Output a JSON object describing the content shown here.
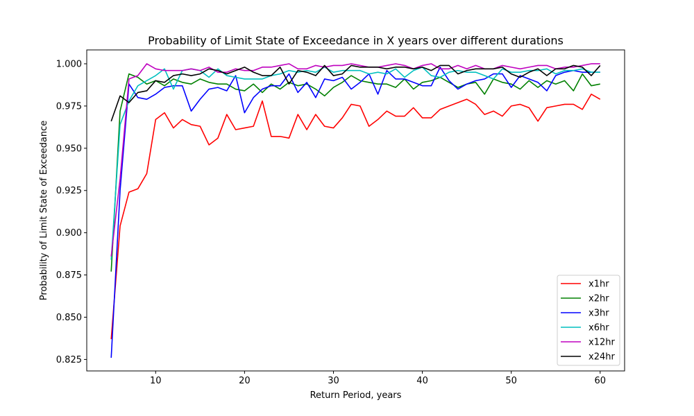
{
  "chart_data": {
    "type": "line",
    "title": "Probability of Limit State of Exceedance in X years over different durations",
    "xlabel": "Return Period, years",
    "ylabel": "Probability of Limit State of Exceedance",
    "xlim": [
      2.25,
      62.75
    ],
    "ylim": [
      0.8182,
      1.0082
    ],
    "xticks": [
      10,
      20,
      30,
      40,
      50,
      60
    ],
    "yticks": [
      0.825,
      0.85,
      0.875,
      0.9,
      0.925,
      0.95,
      0.975,
      1.0
    ],
    "grid": false,
    "legend_position": "lower-right",
    "x": [
      5,
      6,
      7,
      8,
      9,
      10,
      11,
      12,
      13,
      14,
      15,
      16,
      17,
      18,
      19,
      20,
      21,
      22,
      23,
      24,
      25,
      26,
      27,
      28,
      29,
      30,
      31,
      32,
      33,
      34,
      35,
      36,
      37,
      38,
      39,
      40,
      41,
      42,
      43,
      44,
      45,
      46,
      47,
      48,
      49,
      50,
      51,
      52,
      53,
      54,
      55,
      56,
      57,
      58,
      59,
      60
    ],
    "series": [
      {
        "name": "x1hr",
        "color": "#ff0000",
        "values": [
          0.837,
          0.904,
          0.924,
          0.926,
          0.935,
          0.967,
          0.971,
          0.962,
          0.967,
          0.964,
          0.963,
          0.952,
          0.956,
          0.97,
          0.961,
          0.962,
          0.963,
          0.978,
          0.957,
          0.957,
          0.956,
          0.97,
          0.961,
          0.97,
          0.963,
          0.962,
          0.968,
          0.976,
          0.975,
          0.963,
          0.967,
          0.972,
          0.969,
          0.969,
          0.974,
          0.968,
          0.968,
          0.973,
          0.975,
          0.977,
          0.979,
          0.976,
          0.97,
          0.972,
          0.969,
          0.975,
          0.976,
          0.974,
          0.966,
          0.974,
          0.975,
          0.976,
          0.976,
          0.973,
          0.982,
          0.979
        ]
      },
      {
        "name": "x2hr",
        "color": "#008000",
        "values": [
          0.877,
          0.972,
          0.994,
          0.992,
          0.988,
          0.99,
          0.987,
          0.991,
          0.989,
          0.988,
          0.991,
          0.989,
          0.988,
          0.988,
          0.985,
          0.984,
          0.988,
          0.983,
          0.988,
          0.985,
          0.989,
          0.987,
          0.988,
          0.985,
          0.981,
          0.986,
          0.989,
          0.993,
          0.99,
          0.989,
          0.988,
          0.988,
          0.986,
          0.991,
          0.985,
          0.989,
          0.99,
          0.992,
          0.989,
          0.986,
          0.988,
          0.989,
          0.982,
          0.991,
          0.989,
          0.988,
          0.985,
          0.99,
          0.986,
          0.99,
          0.988,
          0.99,
          0.984,
          0.994,
          0.987,
          0.988
        ]
      },
      {
        "name": "x3hr",
        "color": "#0000ff",
        "values": [
          0.826,
          0.925,
          0.988,
          0.98,
          0.979,
          0.982,
          0.986,
          0.987,
          0.987,
          0.972,
          0.979,
          0.985,
          0.986,
          0.984,
          0.993,
          0.971,
          0.98,
          0.985,
          0.987,
          0.987,
          0.994,
          0.983,
          0.989,
          0.98,
          0.991,
          0.99,
          0.992,
          0.985,
          0.989,
          0.994,
          0.982,
          0.996,
          0.991,
          0.991,
          0.989,
          0.987,
          0.987,
          0.998,
          0.99,
          0.985,
          0.988,
          0.99,
          0.991,
          0.994,
          0.994,
          0.986,
          0.993,
          0.991,
          0.989,
          0.984,
          0.993,
          0.995,
          0.996,
          0.995,
          0.995,
          0.995
        ]
      },
      {
        "name": "x6hr",
        "color": "#00bfbf",
        "values": [
          0.884,
          0.964,
          0.978,
          0.987,
          0.99,
          0.993,
          0.997,
          0.985,
          0.996,
          0.997,
          0.996,
          0.992,
          0.997,
          0.993,
          0.992,
          0.991,
          0.991,
          0.991,
          0.993,
          0.994,
          0.996,
          0.995,
          0.996,
          0.995,
          0.998,
          0.995,
          0.996,
          0.996,
          0.996,
          0.994,
          0.995,
          0.994,
          0.997,
          0.992,
          0.996,
          0.998,
          0.993,
          0.992,
          0.995,
          0.996,
          0.995,
          0.995,
          0.993,
          0.991,
          0.997,
          0.995,
          0.995,
          0.996,
          0.996,
          0.997,
          0.994,
          0.996,
          0.996,
          0.997,
          0.995,
          0.995
        ]
      },
      {
        "name": "x12hr",
        "color": "#bf00bf",
        "values": [
          0.886,
          0.932,
          0.991,
          0.993,
          1.0,
          0.997,
          0.996,
          0.996,
          0.996,
          0.997,
          0.996,
          0.998,
          0.995,
          0.995,
          0.997,
          0.996,
          0.996,
          0.998,
          0.998,
          0.999,
          1.0,
          0.997,
          0.997,
          0.999,
          0.998,
          0.999,
          0.999,
          1.0,
          0.999,
          0.998,
          0.998,
          0.999,
          1.0,
          0.999,
          0.997,
          0.999,
          1.0,
          0.997,
          0.997,
          0.999,
          0.997,
          0.999,
          0.997,
          0.997,
          0.999,
          0.998,
          0.997,
          0.998,
          0.999,
          0.999,
          0.997,
          0.998,
          0.998,
          0.999,
          1.0,
          1.0
        ]
      },
      {
        "name": "x24hr",
        "color": "#000000",
        "values": [
          0.966,
          0.981,
          0.977,
          0.983,
          0.984,
          0.99,
          0.989,
          0.993,
          0.994,
          0.993,
          0.994,
          0.997,
          0.996,
          0.994,
          0.996,
          0.998,
          0.995,
          0.993,
          0.993,
          0.998,
          0.988,
          0.996,
          0.995,
          0.993,
          0.999,
          0.993,
          0.994,
          0.999,
          0.998,
          0.998,
          0.998,
          0.997,
          0.998,
          0.998,
          0.997,
          0.998,
          0.996,
          0.999,
          0.999,
          0.994,
          0.996,
          0.997,
          0.997,
          0.997,
          0.998,
          0.994,
          0.992,
          0.995,
          0.997,
          0.993,
          0.997,
          0.997,
          0.999,
          0.998,
          0.993,
          0.999
        ]
      }
    ]
  }
}
